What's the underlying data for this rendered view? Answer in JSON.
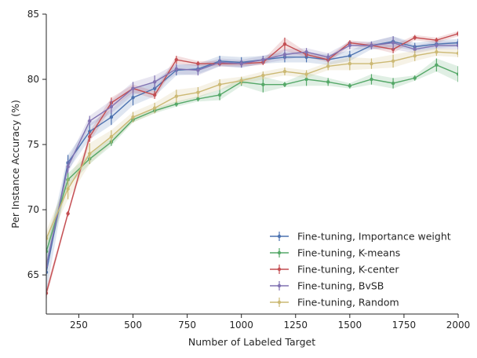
{
  "chart_data": {
    "type": "line",
    "xlabel": "Number of Labeled Target",
    "ylabel": "Per Instance Accuracy (%)",
    "xlim": [
      100,
      2000
    ],
    "ylim": [
      62,
      85
    ],
    "xticks": [
      250,
      500,
      750,
      1000,
      1250,
      1500,
      1750,
      2000
    ],
    "yticks": [
      65,
      70,
      75,
      80,
      85
    ],
    "grid": false,
    "legend_position": "lower-right",
    "x": [
      100,
      200,
      300,
      400,
      500,
      600,
      700,
      800,
      900,
      1000,
      1100,
      1200,
      1300,
      1400,
      1500,
      1600,
      1700,
      1800,
      1900,
      2000
    ],
    "series": [
      {
        "name": "Fine-tuning, Importance weight",
        "color": "#4c72b0",
        "values": [
          65.2,
          73.6,
          76.0,
          77.1,
          78.6,
          79.3,
          80.7,
          80.8,
          81.4,
          81.3,
          81.5,
          81.7,
          81.7,
          81.5,
          81.8,
          82.6,
          82.9,
          82.5,
          82.7,
          82.8
        ],
        "errors": [
          1.6,
          0.6,
          0.6,
          0.6,
          0.6,
          0.6,
          0.4,
          0.4,
          0.4,
          0.4,
          0.3,
          0.4,
          0.4,
          0.4,
          0.4,
          0.3,
          0.4,
          0.3,
          0.3,
          0.3
        ]
      },
      {
        "name": "Fine-tuning, K-means",
        "color": "#55a868",
        "values": [
          66.8,
          72.3,
          73.9,
          75.2,
          76.9,
          77.6,
          78.1,
          78.5,
          78.8,
          79.8,
          79.6,
          79.6,
          80.0,
          79.8,
          79.5,
          80.0,
          79.7,
          80.1,
          81.1,
          80.4
        ],
        "errors": [
          1.0,
          0.5,
          0.4,
          0.3,
          0.2,
          0.2,
          0.2,
          0.2,
          0.4,
          0.3,
          0.6,
          0.2,
          0.5,
          0.3,
          0.2,
          0.4,
          0.4,
          0.2,
          0.5,
          0.6
        ]
      },
      {
        "name": "Fine-tuning, K-center",
        "color": "#c44e52",
        "values": [
          63.6,
          69.7,
          75.6,
          78.2,
          79.3,
          78.8,
          81.5,
          81.2,
          81.2,
          81.2,
          81.3,
          82.7,
          81.9,
          81.5,
          82.8,
          82.6,
          82.3,
          83.2,
          83.0,
          83.5
        ],
        "errors": [
          0.4,
          0.2,
          0.4,
          0.4,
          0.3,
          0.3,
          0.3,
          0.2,
          0.2,
          0.2,
          0.2,
          0.5,
          0.2,
          0.2,
          0.2,
          0.2,
          0.3,
          0.2,
          0.2,
          0.2
        ]
      },
      {
        "name": "Fine-tuning, BvSB",
        "color": "#8172b2",
        "values": [
          65.7,
          73.3,
          76.8,
          77.9,
          79.3,
          79.8,
          80.8,
          80.7,
          81.3,
          81.2,
          81.5,
          81.9,
          82.1,
          81.7,
          82.6,
          82.6,
          82.8,
          82.3,
          82.6,
          82.6
        ],
        "errors": [
          0.4,
          0.5,
          0.4,
          0.5,
          0.5,
          0.5,
          0.4,
          0.4,
          0.3,
          0.3,
          0.3,
          0.4,
          0.3,
          0.3,
          0.3,
          0.3,
          0.5,
          0.3,
          0.3,
          0.3
        ]
      },
      {
        "name": "Fine-tuning, Random",
        "color": "#ccb974",
        "values": [
          67.8,
          71.6,
          74.3,
          75.6,
          77.1,
          77.8,
          78.7,
          79.0,
          79.6,
          79.9,
          80.3,
          80.6,
          80.4,
          81.0,
          81.2,
          81.2,
          81.4,
          81.8,
          82.1,
          82.0
        ],
        "errors": [
          0.6,
          0.8,
          0.8,
          0.5,
          0.4,
          0.4,
          0.5,
          0.4,
          0.4,
          0.3,
          0.3,
          0.3,
          0.3,
          0.3,
          0.5,
          0.4,
          0.5,
          0.4,
          0.3,
          0.3
        ]
      }
    ]
  }
}
